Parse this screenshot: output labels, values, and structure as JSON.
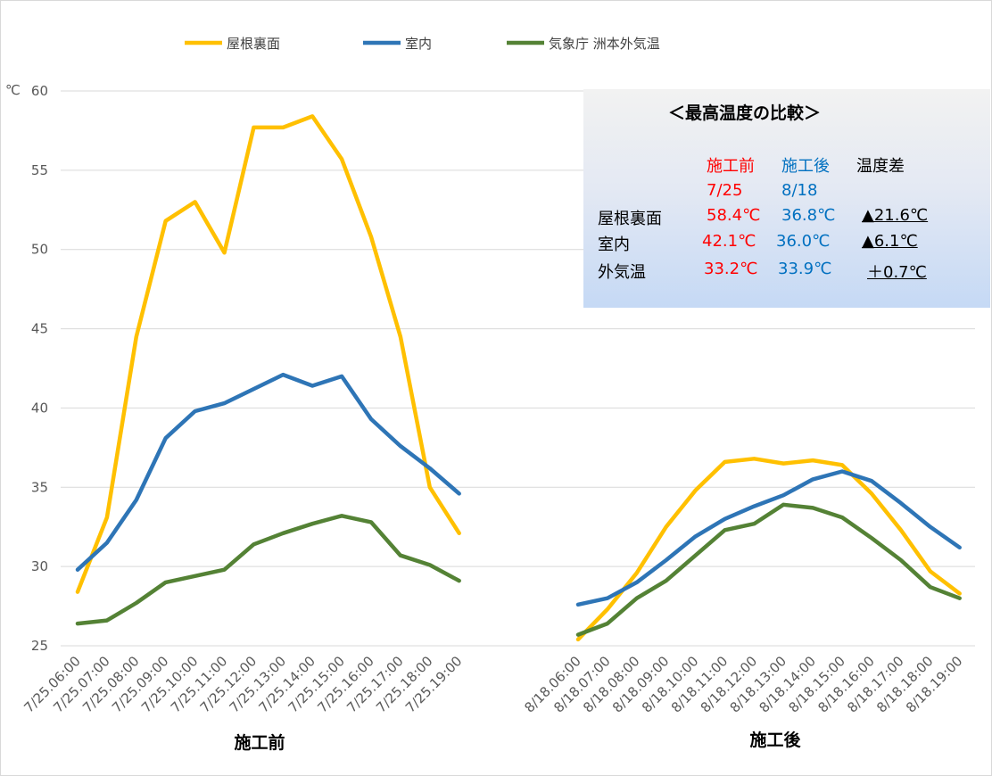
{
  "chart_data": {
    "type": "line",
    "ylabel": "℃",
    "ylim": [
      25,
      60
    ],
    "yticks": [
      25,
      30,
      35,
      40,
      45,
      50,
      55,
      60
    ],
    "grid": true,
    "legend_position": "top",
    "series_meta": [
      {
        "name": "屋根裏面",
        "color": "#ffc000"
      },
      {
        "name": "室内",
        "color": "#2e75b6"
      },
      {
        "name": "気象庁  洲本外気温",
        "color": "#548235"
      }
    ],
    "panels": [
      {
        "label": "施工前",
        "x": [
          "7/25.06:00",
          "7/25.07:00",
          "7/25.08:00",
          "7/25.09:00",
          "7/25.10:00",
          "7/25.11:00",
          "7/25.12:00",
          "7/25.13:00",
          "7/25.14:00",
          "7/25.15:00",
          "7/25.16:00",
          "7/25.17:00",
          "7/25.18:00",
          "7/25.19:00"
        ],
        "series": [
          {
            "name": "屋根裏面",
            "values": [
              28.4,
              33.1,
              44.5,
              51.8,
              53.0,
              49.8,
              57.7,
              57.7,
              58.4,
              55.7,
              50.8,
              44.5,
              35.0,
              32.1
            ]
          },
          {
            "name": "室内",
            "values": [
              29.8,
              31.5,
              34.2,
              38.1,
              39.8,
              40.3,
              41.2,
              42.1,
              41.4,
              42.0,
              39.3,
              37.6,
              36.2,
              34.6
            ]
          },
          {
            "name": "気象庁  洲本外気温",
            "values": [
              26.4,
              26.6,
              27.7,
              29.0,
              29.4,
              29.8,
              31.4,
              32.1,
              32.7,
              33.2,
              32.8,
              30.7,
              30.1,
              29.1
            ]
          }
        ]
      },
      {
        "label": "施工後",
        "x": [
          "8/18.06:00",
          "8/18.07:00",
          "8/18.08:00",
          "8/18.09:00",
          "8/18.10:00",
          "8/18.11:00",
          "8/18.12:00",
          "8/18.13:00",
          "8/18.14:00",
          "8/18.15:00",
          "8/18.16:00",
          "8/18.17:00",
          "8/18.18:00",
          "8/18.19:00"
        ],
        "series": [
          {
            "name": "屋根裏面",
            "values": [
              25.4,
              27.3,
              29.6,
              32.5,
              34.8,
              36.6,
              36.8,
              36.5,
              36.7,
              36.4,
              34.6,
              32.3,
              29.7,
              28.3
            ]
          },
          {
            "name": "室内",
            "values": [
              27.6,
              28.0,
              29.0,
              30.4,
              31.9,
              33.0,
              33.8,
              34.5,
              35.5,
              36.0,
              35.4,
              34.0,
              32.5,
              31.2
            ]
          },
          {
            "name": "気象庁  洲本外気温",
            "values": [
              25.7,
              26.4,
              28.0,
              29.1,
              30.7,
              32.3,
              32.7,
              33.9,
              33.7,
              33.1,
              31.8,
              30.4,
              28.7,
              28.0
            ]
          }
        ]
      }
    ]
  },
  "summary": {
    "title": "＜最高温度の比較＞",
    "col_before": "施工前",
    "col_after": "施工後",
    "col_diff": "温度差",
    "date_before": "7/25",
    "date_after": "8/18",
    "rows": [
      {
        "label": "屋根裏面",
        "before": "58.4℃",
        "after": "36.8℃",
        "diff": "▲21.6℃"
      },
      {
        "label": "室内",
        "before": "42.1℃",
        "after": "36.0℃",
        "diff": "▲6.1℃"
      },
      {
        "label": "外気温",
        "before": "33.2℃",
        "after": "33.9℃",
        "diff": "＋0.7℃"
      }
    ]
  }
}
